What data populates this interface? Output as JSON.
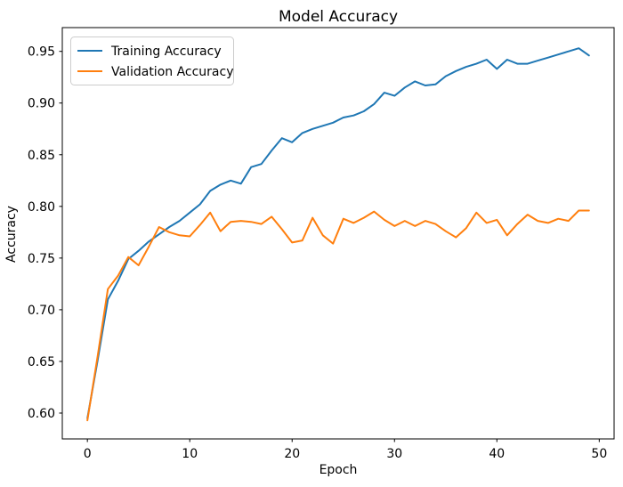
{
  "chart_data": {
    "type": "line",
    "title": "Model Accuracy",
    "xlabel": "Epoch",
    "ylabel": "Accuracy",
    "x": [
      0,
      1,
      2,
      3,
      4,
      5,
      6,
      7,
      8,
      9,
      10,
      11,
      12,
      13,
      14,
      15,
      16,
      17,
      18,
      19,
      20,
      21,
      22,
      23,
      24,
      25,
      26,
      27,
      28,
      29,
      30,
      31,
      32,
      33,
      34,
      35,
      36,
      37,
      38,
      39,
      40,
      41,
      42,
      43,
      44,
      45,
      46,
      47,
      48,
      49
    ],
    "series": [
      {
        "name": "Training Accuracy",
        "color": "#1f77b4",
        "values": [
          0.595,
          0.651,
          0.71,
          0.728,
          0.749,
          0.757,
          0.766,
          0.773,
          0.78,
          0.786,
          0.794,
          0.802,
          0.815,
          0.821,
          0.825,
          0.822,
          0.838,
          0.841,
          0.854,
          0.866,
          0.862,
          0.871,
          0.875,
          0.878,
          0.881,
          0.886,
          0.888,
          0.892,
          0.899,
          0.91,
          0.907,
          0.915,
          0.921,
          0.917,
          0.918,
          0.926,
          0.931,
          0.935,
          0.938,
          0.942,
          0.933,
          0.942,
          0.938,
          0.938,
          0.941,
          0.944,
          0.947,
          0.95,
          0.953,
          0.946
        ]
      },
      {
        "name": "Validation Accuracy",
        "color": "#ff7f0e",
        "values": [
          0.593,
          0.655,
          0.72,
          0.733,
          0.751,
          0.743,
          0.761,
          0.78,
          0.775,
          0.772,
          0.771,
          0.782,
          0.794,
          0.776,
          0.785,
          0.786,
          0.785,
          0.783,
          0.79,
          0.778,
          0.765,
          0.767,
          0.789,
          0.772,
          0.764,
          0.788,
          0.784,
          0.789,
          0.795,
          0.787,
          0.781,
          0.786,
          0.781,
          0.786,
          0.783,
          0.776,
          0.77,
          0.779,
          0.794,
          0.784,
          0.787,
          0.772,
          0.783,
          0.792,
          0.786,
          0.784,
          0.788,
          0.786,
          0.796,
          0.796
        ]
      }
    ],
    "xlim": [
      -2.45,
      51.45
    ],
    "ylim": [
      0.575,
      0.973
    ],
    "xticks": [
      "0",
      "10",
      "20",
      "30",
      "40",
      "50"
    ],
    "yticks": [
      "0.60",
      "0.65",
      "0.70",
      "0.75",
      "0.80",
      "0.85",
      "0.90",
      "0.95"
    ],
    "grid": false,
    "legend_position": "upper left",
    "spine_color": "#000000",
    "background_color": "#ffffff"
  }
}
